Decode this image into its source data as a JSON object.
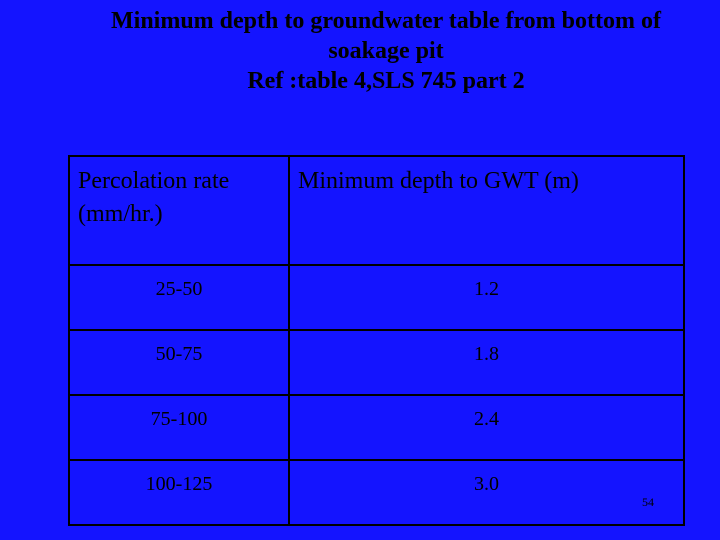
{
  "header": {
    "title": "Minimum depth to groundwater table from bottom of soakage pit",
    "reference": "Ref :table 4,SLS 745 part 2"
  },
  "table": {
    "columns": [
      "Percolation rate (mm/hr.)",
      "Minimum depth to GWT (m)"
    ],
    "rows": [
      [
        "25-50",
        "1.2"
      ],
      [
        "50-75",
        "1.8"
      ],
      [
        "75-100",
        "2.4"
      ],
      [
        "100-125",
        "3.0"
      ]
    ]
  },
  "footer": {
    "page_number": "54"
  }
}
